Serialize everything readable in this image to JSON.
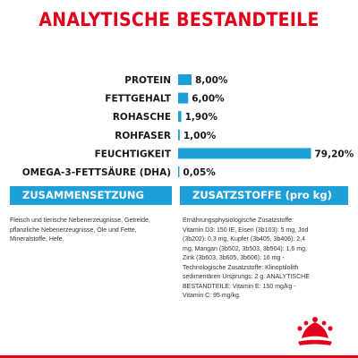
{
  "title": "ANALYTISCHE BESTANDTEILE",
  "chart_data": {
    "type": "bar",
    "orientation": "horizontal",
    "categories": [
      "PROTEIN",
      "FETTGEHALT",
      "ROHASCHE",
      "ROHFASER",
      "FEUCHTIGKEIT",
      "OMEGA-3-FETTSÄURE (DHA)"
    ],
    "values": [
      8.0,
      6.0,
      1.9,
      1.0,
      79.2,
      0.05
    ],
    "value_labels": [
      "8,00%",
      "6,00%",
      "1,90%",
      "1,00%",
      "79,20%",
      "0,05%"
    ],
    "unit": "%",
    "bar_color": "#1f9fd8",
    "label_color": "#1a1a1a",
    "xlim": [
      0,
      80
    ],
    "grid": false,
    "legend": "none"
  },
  "sections": {
    "composition": {
      "header": "ZUSAMMENSETZUNG",
      "text": "Fleisch und tierische Nebenerzeugnisse, Getreide, pflanzliche Nebenerzeugnisse, Öle und Fette, Mineralstoffe, Hefe."
    },
    "additives": {
      "header": "ZUSATZSTOFFE (pro kg)",
      "text": "Ernährungsphysiologische Zusatzstoffe: Vitamin D3: 150 IE, Eisen (3b103): 5 mg, Jod (3b202): 0,3 mg, Kupfer (3b405, 3b406): 2,4 mg, Mangan (3b502, 3b503, 3b504): 1,6 mg, Zink (3b603, 3b605, 3b606): 16 mg - Technologische Zusatzstoffe: Klinoptilolith sedimentären Ursprungs: 2 g. ANALYTISCHE BESTANDTEILE: Vitamin E: 150 mg/kg - Vitamin C: 95 mg/kg."
    }
  },
  "colors": {
    "brand_red": "#e2001a",
    "accent_blue": "#1f9fd8"
  },
  "logo": {
    "icon": "crown-icon"
  }
}
